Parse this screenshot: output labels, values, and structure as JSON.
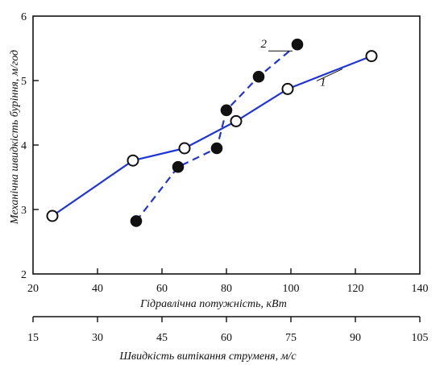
{
  "chart_data": {
    "type": "line",
    "title": "",
    "xlabel": "Гідравлічна потужність, кВт",
    "ylabel": "Механічна швидкість буріння, м/год",
    "x2label": "Швидкість витікання струменя, м/с",
    "xlim": [
      20,
      140
    ],
    "ylim": [
      2,
      6
    ],
    "x2lim": [
      15,
      105
    ],
    "xticks": [
      "20",
      "40",
      "60",
      "80",
      "100",
      "120",
      "140"
    ],
    "yticks": [
      "2",
      "3",
      "4",
      "5",
      "6"
    ],
    "x2ticks": [
      "15",
      "30",
      "45",
      "60",
      "75",
      "90",
      "105"
    ],
    "grid": false,
    "series": [
      {
        "name": "1",
        "color": "#2035d6",
        "line": "solid",
        "marker": "open-circle",
        "points": [
          {
            "x": 26,
            "y": 2.9
          },
          {
            "x": 51,
            "y": 3.76
          },
          {
            "x": 67,
            "y": 3.95
          },
          {
            "x": 83,
            "y": 4.37
          },
          {
            "x": 99,
            "y": 4.87
          },
          {
            "x": 125,
            "y": 5.38
          }
        ]
      },
      {
        "name": "2",
        "color": "#2035d6",
        "line": "dashed",
        "marker": "filled-circle",
        "points": [
          {
            "x": 52,
            "y": 2.82
          },
          {
            "x": 65,
            "y": 3.66
          },
          {
            "x": 77,
            "y": 3.95
          },
          {
            "x": 80,
            "y": 4.54
          },
          {
            "x": 90,
            "y": 5.06
          },
          {
            "x": 102,
            "y": 5.56
          }
        ]
      }
    ]
  }
}
